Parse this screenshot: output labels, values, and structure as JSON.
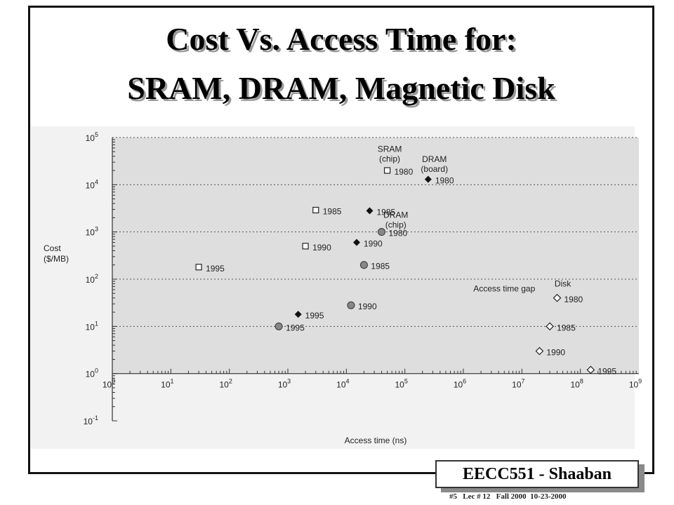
{
  "slide": {
    "title_line1": "Cost Vs. Access Time for:",
    "title_line2": "SRAM, DRAM, Magnetic Disk",
    "badge": "EECC551 - Shaaban",
    "footer": "#5   Lec # 12   Fall 2000  10-23-2000"
  },
  "chart_data": {
    "type": "scatter",
    "xlabel": "Access time (ns)",
    "ylabel_lines": [
      "Cost",
      "($/MB)"
    ],
    "x_scale": "log",
    "y_scale": "log",
    "xlim": [
      1,
      1000000000
    ],
    "ylim": [
      0.1,
      100000
    ],
    "x_ticks": [
      {
        "v": 1,
        "b": "10",
        "e": "0"
      },
      {
        "v": 10,
        "b": "10",
        "e": "1"
      },
      {
        "v": 100,
        "b": "10",
        "e": "2"
      },
      {
        "v": 1000,
        "b": "10",
        "e": "3"
      },
      {
        "v": 10000,
        "b": "10",
        "e": "4"
      },
      {
        "v": 100000,
        "b": "10",
        "e": "5"
      },
      {
        "v": 1000000,
        "b": "10",
        "e": "6"
      },
      {
        "v": 10000000,
        "b": "10",
        "e": "7"
      },
      {
        "v": 100000000,
        "b": "10",
        "e": "8"
      },
      {
        "v": 1000000000,
        "b": "10",
        "e": "9"
      }
    ],
    "y_ticks": [
      {
        "v": 100000,
        "b": "10",
        "e": "5"
      },
      {
        "v": 10000,
        "b": "10",
        "e": "4"
      },
      {
        "v": 1000,
        "b": "10",
        "e": "3"
      },
      {
        "v": 100,
        "b": "10",
        "e": "2"
      },
      {
        "v": 10,
        "b": "10",
        "e": "1"
      },
      {
        "v": 1,
        "b": "10",
        "e": "0"
      },
      {
        "v": 0.1,
        "b": "10",
        "e": "-1"
      }
    ],
    "grid": "dotted horizontal at decades",
    "shaded_region": true,
    "series": [
      {
        "marker": "square-open",
        "points": [
          {
            "x": 50000,
            "y": 20000,
            "label": "1980"
          },
          {
            "x": 3000,
            "y": 2900,
            "label": "1985"
          },
          {
            "x": 2000,
            "y": 500,
            "label": "1990"
          },
          {
            "x": 30,
            "y": 180,
            "label": "1995"
          }
        ]
      },
      {
        "marker": "diamond-filled",
        "points": [
          {
            "x": 250000,
            "y": 13000,
            "label": "1980"
          },
          {
            "x": 25000,
            "y": 2800,
            "label": "1985"
          },
          {
            "x": 15000,
            "y": 600,
            "label": "1990"
          },
          {
            "x": 1500,
            "y": 18,
            "label": "1995"
          }
        ]
      },
      {
        "marker": "circle-gray",
        "points": [
          {
            "x": 40000,
            "y": 1000,
            "label": "1980"
          },
          {
            "x": 20000,
            "y": 200,
            "label": "1985"
          },
          {
            "x": 12000,
            "y": 28,
            "label": "1990"
          },
          {
            "x": 700,
            "y": 10,
            "label": "1995"
          }
        ]
      },
      {
        "marker": "diamond-open",
        "points": [
          {
            "x": 40000000,
            "y": 40,
            "label": "1980"
          },
          {
            "x": 30000000,
            "y": 10,
            "label": "1985"
          },
          {
            "x": 20000000,
            "y": 3,
            "label": "1990"
          },
          {
            "x": 150000000,
            "y": 1.2,
            "label": "1995"
          }
        ]
      }
    ],
    "annotations": [
      {
        "lines": [
          "SRAM",
          "(chip)"
        ],
        "x": 55000,
        "y": 50000
      },
      {
        "lines": [
          "DRAM",
          "(board)"
        ],
        "x": 320000,
        "y": 30000
      },
      {
        "lines": [
          "DRAM",
          "(chip)"
        ],
        "x": 70000,
        "y": 2000
      },
      {
        "lines": [
          "Access time gap"
        ],
        "x": 5000000,
        "y": 55
      },
      {
        "lines": [
          "Disk"
        ],
        "x": 50000000,
        "y": 70
      }
    ]
  }
}
